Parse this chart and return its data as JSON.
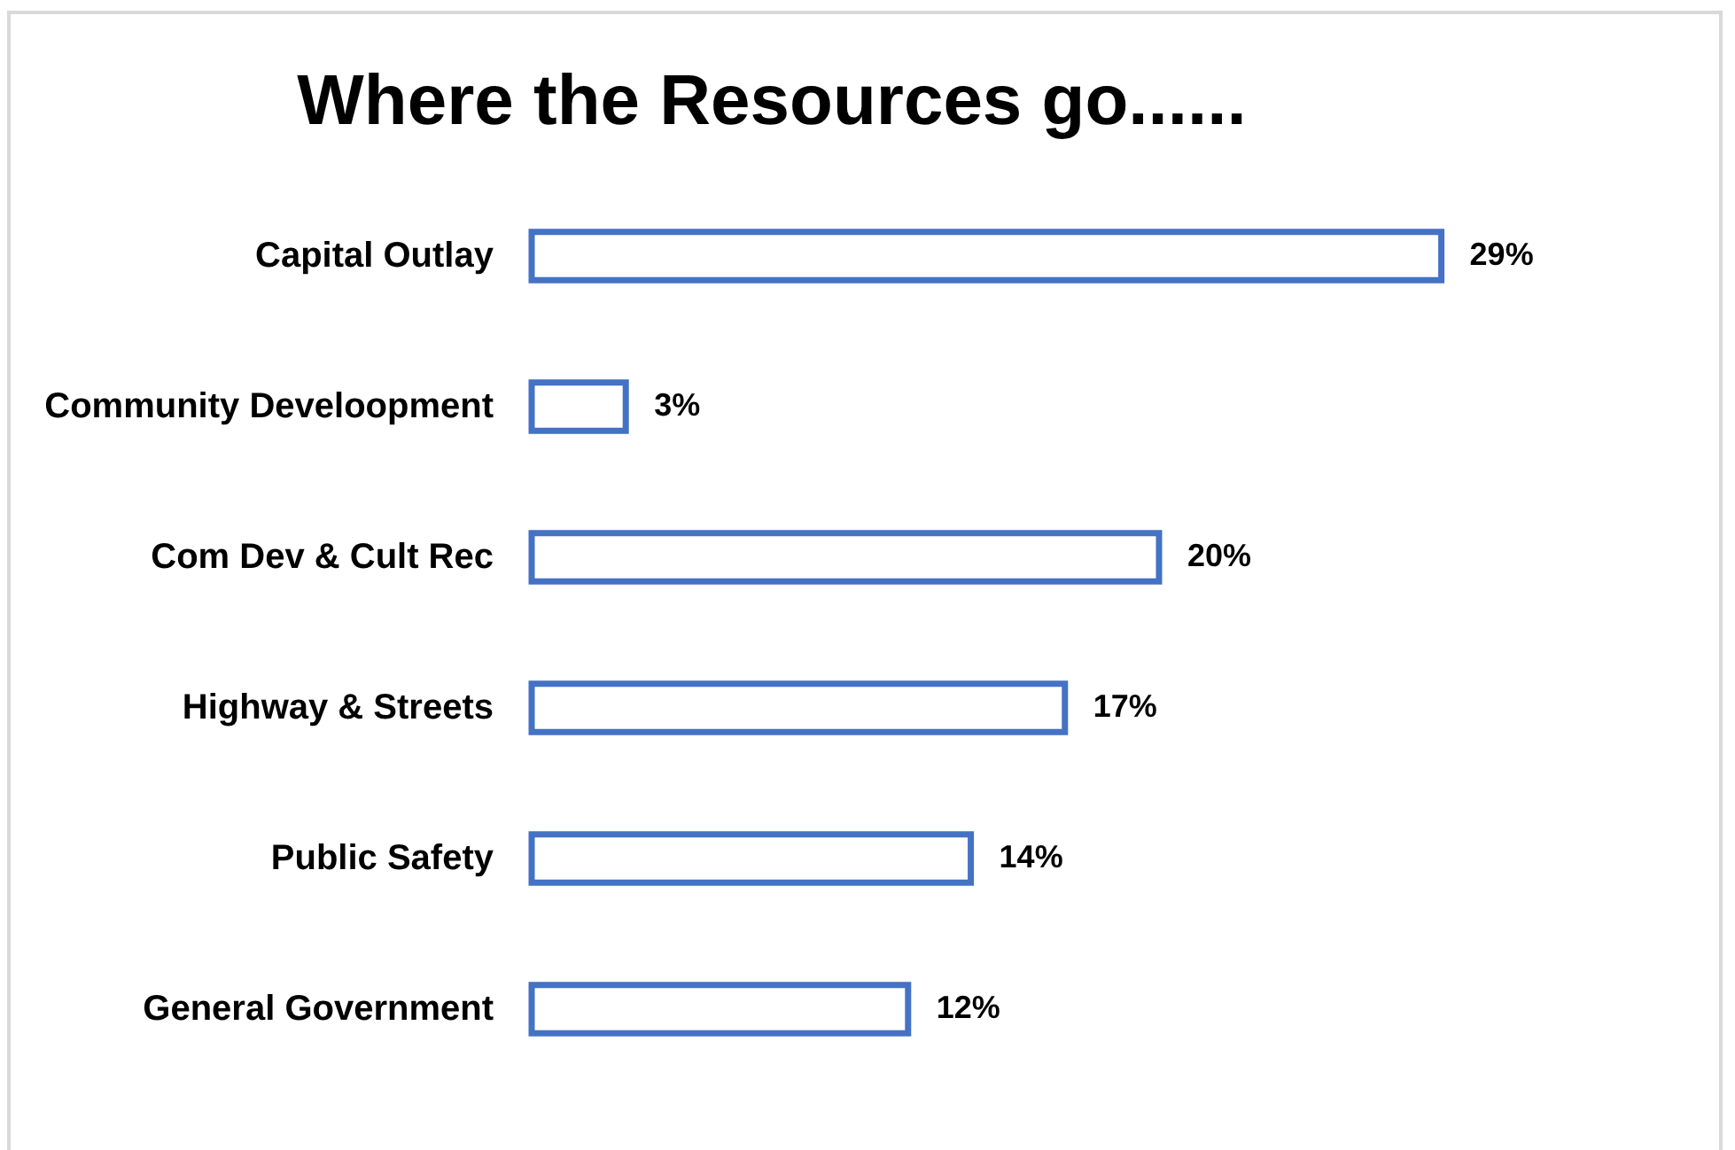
{
  "chart_data": {
    "type": "bar",
    "orientation": "horizontal",
    "title": "Where the Resources go......",
    "categories": [
      "Capital Outlay",
      "Community Develoopment",
      "Com Dev & Cult Rec",
      "Highway & Streets",
      "Public Safety",
      "General Government"
    ],
    "values": [
      29,
      3,
      20,
      17,
      14,
      12
    ],
    "value_labels": [
      "29%",
      "3%",
      "20%",
      "17%",
      "14%",
      "12%"
    ],
    "color": "#4472c4"
  }
}
